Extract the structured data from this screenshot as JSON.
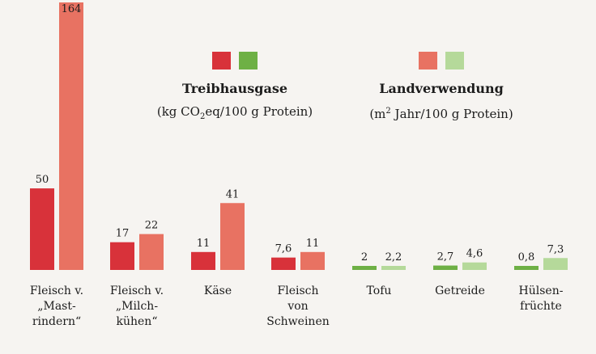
{
  "chart_data": {
    "type": "bar",
    "categories": [
      [
        "Fleisch v.",
        "„Mast-",
        "rindern“"
      ],
      [
        "Fleisch v.",
        "„Milch-",
        "kühen“"
      ],
      [
        "Käse"
      ],
      [
        "Fleisch",
        "von",
        "Schweinen"
      ],
      [
        "Tofu"
      ],
      [
        "Getreide"
      ],
      [
        "Hülsen-",
        "früchte"
      ]
    ],
    "series": [
      {
        "name": "Treibhausgase",
        "values": [
          50,
          17,
          11,
          7.6,
          2,
          2.7,
          0.8
        ],
        "labels": [
          "50",
          "17",
          "11",
          "7,6",
          "2",
          "2,7",
          "0,8"
        ],
        "colors": [
          "#d8323a",
          "#d8323a",
          "#d8323a",
          "#d8323a",
          "#6eb045",
          "#6eb045",
          "#6eb045"
        ]
      },
      {
        "name": "Landverwendung",
        "values": [
          164,
          22,
          41,
          11,
          2.2,
          4.6,
          7.3
        ],
        "labels": [
          "164",
          "22",
          "41",
          "11",
          "2,2",
          "4,6",
          "7,3"
        ],
        "colors": [
          "#e87262",
          "#e87262",
          "#e87262",
          "#e87262",
          "#b5d99a",
          "#b5d99a",
          "#b5d99a"
        ]
      }
    ],
    "ylim": [
      0,
      164
    ]
  },
  "legend": {
    "ghg": {
      "title": "Treibhausgase",
      "unit_pre": "(kg CO",
      "unit_sub": "2",
      "unit_post": "eq/100 g Protein)",
      "colors": [
        "#d8323a",
        "#6eb045"
      ]
    },
    "land": {
      "title": "Landverwendung",
      "unit_pre": "(m",
      "unit_sup": "2",
      "unit_post": " Jahr/100 g Protein)",
      "colors": [
        "#e87262",
        "#b5d99a"
      ]
    }
  }
}
